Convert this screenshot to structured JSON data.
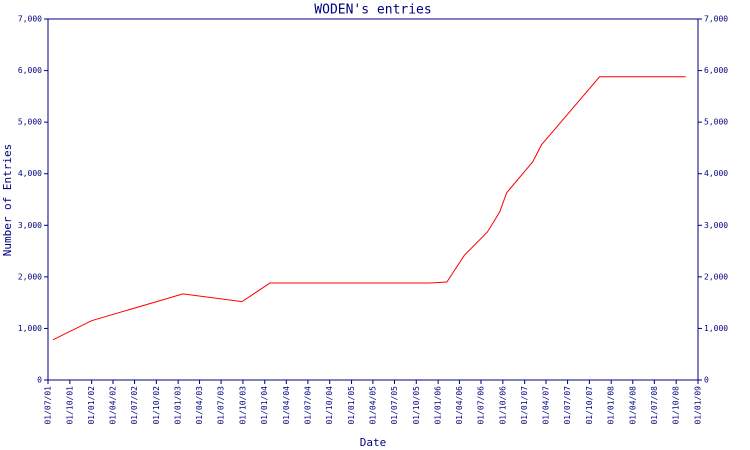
{
  "chart_data": {
    "type": "line",
    "title": "WODEN's entries",
    "x_label": "Date",
    "y_label": "Number of Entries",
    "x": [
      "2001-07-22",
      "2002-01-01",
      "2003-01-21",
      "2003-09-27",
      "2004-01-23",
      "2005-11-27",
      "2006-02-07",
      "2006-04-22",
      "2006-07-28",
      "2006-09-18",
      "2006-10-17",
      "2007-02-04",
      "2007-03-13",
      "2007-11-13",
      "2008-11-10"
    ],
    "series": [
      {
        "name": "entries",
        "color": "#ff0000",
        "values": [
          780,
          1150,
          1670,
          1520,
          1880,
          1880,
          1900,
          2420,
          2870,
          3260,
          3630,
          4230,
          4560,
          5880,
          5880
        ]
      }
    ],
    "xlim": [
      "2001-07-01",
      "2009-01-01"
    ],
    "xticks": [
      {
        "value": "2001-07-01",
        "label": "01/07/01"
      },
      {
        "value": "2001-10-01",
        "label": "01/10/01"
      },
      {
        "value": "2002-01-01",
        "label": "01/01/02"
      },
      {
        "value": "2002-04-01",
        "label": "01/04/02"
      },
      {
        "value": "2002-07-01",
        "label": "01/07/02"
      },
      {
        "value": "2002-10-01",
        "label": "01/10/02"
      },
      {
        "value": "2003-01-01",
        "label": "01/01/03"
      },
      {
        "value": "2003-04-01",
        "label": "01/04/03"
      },
      {
        "value": "2003-07-01",
        "label": "01/07/03"
      },
      {
        "value": "2003-10-01",
        "label": "01/10/03"
      },
      {
        "value": "2004-01-01",
        "label": "01/01/04"
      },
      {
        "value": "2004-04-01",
        "label": "01/04/04"
      },
      {
        "value": "2004-07-01",
        "label": "01/07/04"
      },
      {
        "value": "2004-10-01",
        "label": "01/10/04"
      },
      {
        "value": "2005-01-01",
        "label": "01/01/05"
      },
      {
        "value": "2005-04-01",
        "label": "01/04/05"
      },
      {
        "value": "2005-07-01",
        "label": "01/07/05"
      },
      {
        "value": "2005-10-01",
        "label": "01/10/05"
      },
      {
        "value": "2006-01-01",
        "label": "01/01/06"
      },
      {
        "value": "2006-04-01",
        "label": "01/04/06"
      },
      {
        "value": "2006-07-01",
        "label": "01/07/06"
      },
      {
        "value": "2006-10-01",
        "label": "01/10/06"
      },
      {
        "value": "2007-01-01",
        "label": "01/01/07"
      },
      {
        "value": "2007-04-01",
        "label": "01/04/07"
      },
      {
        "value": "2007-07-01",
        "label": "01/07/07"
      },
      {
        "value": "2007-10-01",
        "label": "01/10/07"
      },
      {
        "value": "2008-01-01",
        "label": "01/01/08"
      },
      {
        "value": "2008-04-01",
        "label": "01/04/08"
      },
      {
        "value": "2008-07-01",
        "label": "01/07/08"
      },
      {
        "value": "2008-10-01",
        "label": "01/10/08"
      },
      {
        "value": "2009-01-01",
        "label": "01/01/09"
      }
    ],
    "ylim": [
      0,
      7000
    ],
    "yticks": [
      0,
      {
        "value": 1000,
        "label": "1,000"
      },
      {
        "value": 2000,
        "label": "2,000"
      },
      {
        "value": 3000,
        "label": "3,000"
      },
      {
        "value": 4000,
        "label": "4,000"
      },
      {
        "value": 5000,
        "label": "5,000"
      },
      {
        "value": 6000,
        "label": "6,000"
      },
      {
        "value": 7000,
        "label": "7,000"
      }
    ],
    "axis_color": "#000080"
  }
}
